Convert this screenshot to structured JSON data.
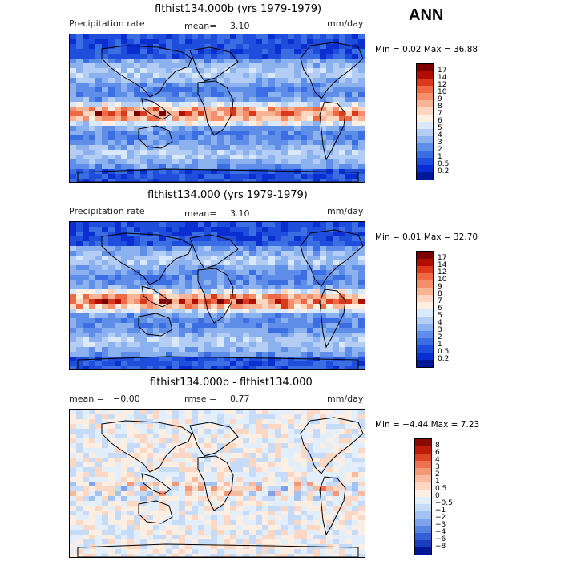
{
  "header": {
    "season": "ANN"
  },
  "panels": [
    {
      "title": "flthist134.000b (yrs 1979-1979)",
      "left_label": "Precipitation rate",
      "mean_label": "mean=",
      "mean_value": "3.10",
      "rmse_label": "",
      "rmse_value": "",
      "units": "mm/day",
      "min_max": "Min =   0.02 Max =  36.88",
      "colorbar": {
        "labels": [
          "17",
          "14",
          "12",
          "10",
          "9",
          "8",
          "7",
          "6",
          "5",
          "4",
          "3",
          "2",
          "1",
          "0.5",
          "0.2"
        ],
        "colors": [
          "#7a0000",
          "#b00f00",
          "#d93a1c",
          "#ee6a45",
          "#f58f6b",
          "#f9b496",
          "#fcd6c0",
          "#fdf0e2",
          "#d9e8fb",
          "#b3cdf5",
          "#8bb2ef",
          "#5e8ee8",
          "#3a6ee2",
          "#1f4ddc",
          "#0a2ecf",
          "#001896"
        ]
      },
      "map_kind": "precip"
    },
    {
      "title": "flthist134.000 (yrs 1979-1979)",
      "left_label": "Precipitation rate",
      "mean_label": "mean=",
      "mean_value": "3.10",
      "rmse_label": "",
      "rmse_value": "",
      "units": "mm/day",
      "min_max": "Min =   0.01 Max =  32.70",
      "colorbar": {
        "labels": [
          "17",
          "14",
          "12",
          "10",
          "9",
          "8",
          "7",
          "6",
          "5",
          "4",
          "3",
          "2",
          "1",
          "0.5",
          "0.2"
        ],
        "colors": [
          "#7a0000",
          "#b00f00",
          "#d93a1c",
          "#ee6a45",
          "#f58f6b",
          "#f9b496",
          "#fcd6c0",
          "#fdf0e2",
          "#d9e8fb",
          "#b3cdf5",
          "#8bb2ef",
          "#5e8ee8",
          "#3a6ee2",
          "#1f4ddc",
          "#0a2ecf",
          "#001896"
        ]
      },
      "map_kind": "precip"
    },
    {
      "title": "flthist134.000b - flthist134.000",
      "left_label": "mean =",
      "mean_label": "",
      "mean_value": "−0.00",
      "rmse_label": "rmse =",
      "rmse_value": "0.77",
      "units": "mm/day",
      "min_max": "Min =  −4.44 Max =   7.23",
      "colorbar": {
        "labels": [
          "8",
          "6",
          "4",
          "3",
          "2",
          "1",
          "0.5",
          "0",
          "−0.5",
          "−1",
          "−2",
          "−3",
          "−4",
          "−6",
          "−8"
        ],
        "colors": [
          "#8a0a00",
          "#c01a05",
          "#df4524",
          "#ee7150",
          "#f59878",
          "#f9bb9f",
          "#fbd7c4",
          "#fdeee4",
          "#e3eefb",
          "#c6dbf7",
          "#a3c1f1",
          "#7da4eb",
          "#5583e3",
          "#3360d8",
          "#1a3dc6",
          "#00179a"
        ]
      },
      "map_kind": "diff"
    }
  ],
  "chart_data": [
    {
      "type": "heatmap",
      "title": "flthist134.000b (yrs 1979-1979)",
      "subtitle": "Precipitation rate",
      "units": "mm/day",
      "mean": 3.1,
      "min": 0.02,
      "max": 36.88,
      "levels": [
        0.2,
        0.5,
        1,
        2,
        3,
        4,
        5,
        6,
        7,
        8,
        9,
        10,
        12,
        14,
        17
      ]
    },
    {
      "type": "heatmap",
      "title": "flthist134.000 (yrs 1979-1979)",
      "subtitle": "Precipitation rate",
      "units": "mm/day",
      "mean": 3.1,
      "min": 0.01,
      "max": 32.7,
      "levels": [
        0.2,
        0.5,
        1,
        2,
        3,
        4,
        5,
        6,
        7,
        8,
        9,
        10,
        12,
        14,
        17
      ]
    },
    {
      "type": "heatmap",
      "title": "flthist134.000b - flthist134.000",
      "units": "mm/day",
      "mean": -0.0,
      "rmse": 0.77,
      "min": -4.44,
      "max": 7.23,
      "levels": [
        -8,
        -6,
        -4,
        -3,
        -2,
        -1,
        -0.5,
        0,
        0.5,
        1,
        2,
        3,
        4,
        6,
        8
      ]
    }
  ]
}
